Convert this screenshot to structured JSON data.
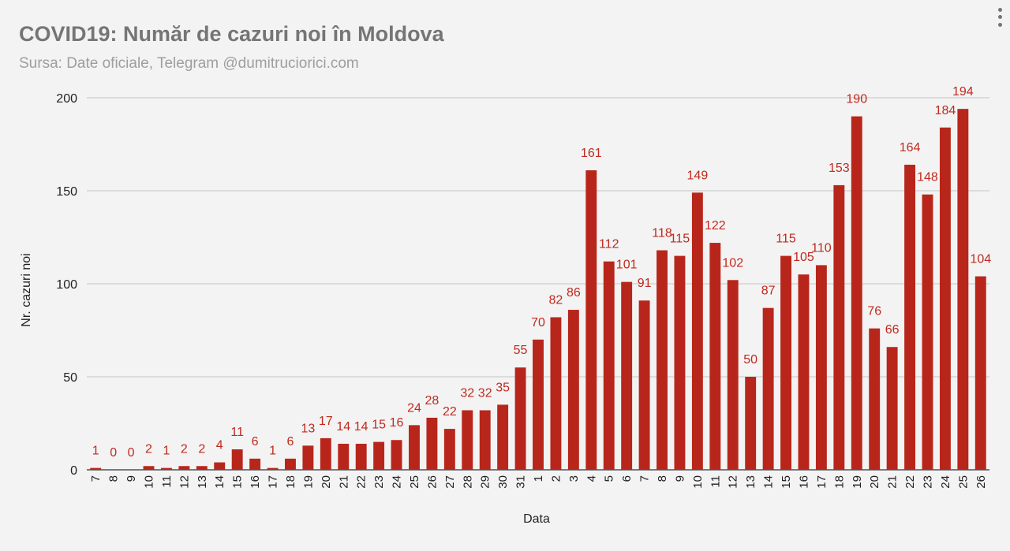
{
  "title": "COVID19: Număr de cazuri noi în Moldova",
  "subtitle": "Sursa: Date oficiale, Telegram @dumitruciorici.com",
  "chart_data": {
    "type": "bar",
    "title": "COVID19: Număr de cazuri noi în Moldova",
    "subtitle": "Sursa: Date oficiale, Telegram @dumitruciorici.com",
    "xlabel": "Data",
    "ylabel": "Nr. cazuri noi",
    "ylim": [
      0,
      200
    ],
    "yticks": [
      0,
      50,
      100,
      150,
      200
    ],
    "grid": true,
    "bar_color": "#b8261b",
    "label_color": "#c0291e",
    "categories": [
      "7",
      "8",
      "9",
      "10",
      "11",
      "12",
      "13",
      "14",
      "15",
      "16",
      "17",
      "18",
      "19",
      "20",
      "21",
      "22",
      "23",
      "24",
      "25",
      "26",
      "27",
      "28",
      "29",
      "30",
      "31",
      "1",
      "2",
      "3",
      "4",
      "5",
      "6",
      "7",
      "8",
      "9",
      "10",
      "11",
      "12",
      "13",
      "14",
      "15",
      "16",
      "17",
      "18",
      "19",
      "20",
      "21",
      "22",
      "23",
      "24",
      "25",
      "26"
    ],
    "values": [
      1,
      0,
      0,
      2,
      1,
      2,
      2,
      4,
      11,
      6,
      1,
      6,
      13,
      17,
      14,
      14,
      15,
      16,
      24,
      28,
      22,
      32,
      32,
      35,
      55,
      70,
      82,
      86,
      161,
      112,
      101,
      91,
      118,
      115,
      149,
      122,
      102,
      50,
      87,
      115,
      105,
      110,
      153,
      190,
      76,
      66,
      164,
      148,
      184,
      194,
      104
    ]
  }
}
